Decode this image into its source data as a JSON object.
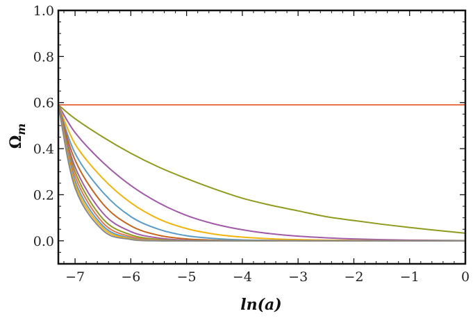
{
  "chart_data": {
    "type": "line",
    "xlabel": "ln(a)",
    "ylabel": "Ω",
    "ylabel_sub": "m",
    "xlim": [
      -7.3,
      0
    ],
    "ylim": [
      -0.1,
      1.0
    ],
    "x_ticks": [
      -7,
      -6,
      -5,
      -4,
      -3,
      -2,
      -1,
      0
    ],
    "x_tick_labels": [
      "−7",
      "−6",
      "−5",
      "−4",
      "−3",
      "−2",
      "−1",
      "0"
    ],
    "y_ticks": [
      0.0,
      0.2,
      0.4,
      0.6,
      0.8,
      1.0
    ],
    "y_tick_labels": [
      "0.0",
      "0.2",
      "0.4",
      "0.6",
      "0.8",
      "1.0"
    ],
    "grid": false,
    "legend": "none",
    "series": [
      {
        "color": "#e8734a",
        "x": [
          -7.3,
          -6,
          -5,
          -4,
          -3,
          -2,
          -1,
          0
        ],
        "y": [
          0.59,
          0.59,
          0.59,
          0.59,
          0.59,
          0.59,
          0.59,
          0.59
        ]
      },
      {
        "color": "#8f9a1e",
        "x": [
          -7.3,
          -7,
          -6.5,
          -6,
          -5.5,
          -5,
          -4.5,
          -4,
          -3.5,
          -3,
          -2.5,
          -2,
          -1.5,
          -1,
          -0.5,
          0
        ],
        "y": [
          0.59,
          0.53,
          0.45,
          0.38,
          0.32,
          0.27,
          0.225,
          0.185,
          0.155,
          0.13,
          0.105,
          0.088,
          0.072,
          0.058,
          0.045,
          0.033
        ]
      },
      {
        "color": "#a05aa8",
        "x": [
          -7.3,
          -7,
          -6.5,
          -6,
          -5.5,
          -5,
          -4.5,
          -4,
          -3.5,
          -3,
          -2.5,
          -2,
          -1.5,
          -1,
          -0.5,
          0
        ],
        "y": [
          0.59,
          0.47,
          0.34,
          0.24,
          0.165,
          0.11,
          0.073,
          0.048,
          0.031,
          0.02,
          0.013,
          0.008,
          0.005,
          0.003,
          0.002,
          0.001
        ]
      },
      {
        "color": "#f2b30e",
        "x": [
          -7.3,
          -7,
          -6.5,
          -6,
          -5.5,
          -5,
          -4.5,
          -4,
          -3.5,
          -3,
          -2.5,
          -2,
          -1.5,
          -1,
          -0.5,
          0
        ],
        "y": [
          0.59,
          0.42,
          0.27,
          0.165,
          0.095,
          0.053,
          0.029,
          0.016,
          0.009,
          0.005,
          0.003,
          0.002,
          0.001,
          0.0,
          0.0,
          0.0
        ]
      },
      {
        "color": "#5a9bc9",
        "x": [
          -7.3,
          -7,
          -6.5,
          -6,
          -5.5,
          -5,
          -4.5,
          -4,
          -3.5,
          -3,
          -2,
          -1,
          0
        ],
        "y": [
          0.59,
          0.38,
          0.21,
          0.105,
          0.05,
          0.022,
          0.01,
          0.004,
          0.002,
          0.001,
          0.0,
          0.0,
          0.0
        ]
      },
      {
        "color": "#c6641d",
        "x": [
          -7.3,
          -7,
          -6.5,
          -6,
          -5.5,
          -5,
          -4.5,
          -4,
          -3,
          -2,
          -1,
          0
        ],
        "y": [
          0.59,
          0.35,
          0.16,
          0.065,
          0.024,
          0.008,
          0.003,
          0.001,
          0.0,
          0.0,
          0.0,
          0.0
        ]
      },
      {
        "color": "#a05aa8",
        "x": [
          -7.3,
          -7,
          -6.5,
          -6,
          -5.5,
          -5,
          -4.5,
          -4,
          -3,
          -2,
          -1,
          0
        ],
        "y": [
          0.59,
          0.32,
          0.12,
          0.04,
          0.012,
          0.003,
          0.001,
          0.0,
          0.0,
          0.0,
          0.0,
          0.0
        ]
      },
      {
        "color": "#8f9a1e",
        "x": [
          -7.3,
          -7,
          -6.5,
          -6,
          -5.5,
          -5,
          -4,
          -3,
          -2,
          -1,
          0
        ],
        "y": [
          0.59,
          0.3,
          0.095,
          0.026,
          0.006,
          0.001,
          0.0,
          0.0,
          0.0,
          0.0,
          0.0
        ]
      },
      {
        "color": "#e8734a",
        "x": [
          -7.3,
          -7,
          -6.5,
          -6,
          -5.5,
          -5,
          -4,
          -3,
          -2,
          -1,
          0
        ],
        "y": [
          0.59,
          0.28,
          0.078,
          0.018,
          0.003,
          0.0,
          0.0,
          0.0,
          0.0,
          0.0,
          0.0
        ]
      },
      {
        "color": "#5a9bc9",
        "x": [
          -7.3,
          -7,
          -6.5,
          -6,
          -5.5,
          -5,
          -4,
          -3,
          -2,
          -1,
          0
        ],
        "y": [
          0.59,
          0.26,
          0.065,
          0.012,
          0.002,
          0.0,
          0.0,
          0.0,
          0.0,
          0.0,
          0.0
        ]
      },
      {
        "color": "#f2b30e",
        "x": [
          -7.3,
          -7,
          -6.5,
          -6,
          -5.5,
          -5,
          -4,
          -3,
          -2,
          -1,
          0
        ],
        "y": [
          0.59,
          0.245,
          0.055,
          0.009,
          0.001,
          0.0,
          0.0,
          0.0,
          0.0,
          0.0,
          0.0
        ]
      },
      {
        "color": "#888888",
        "x": [
          -7.3,
          -7,
          -6.5,
          -6,
          -5.5,
          -5,
          -4,
          -3,
          -2,
          -1,
          0
        ],
        "y": [
          0.59,
          0.23,
          0.045,
          0.006,
          0.0,
          0.0,
          0.0,
          0.0,
          0.0,
          0.0,
          0.0
        ]
      }
    ]
  }
}
